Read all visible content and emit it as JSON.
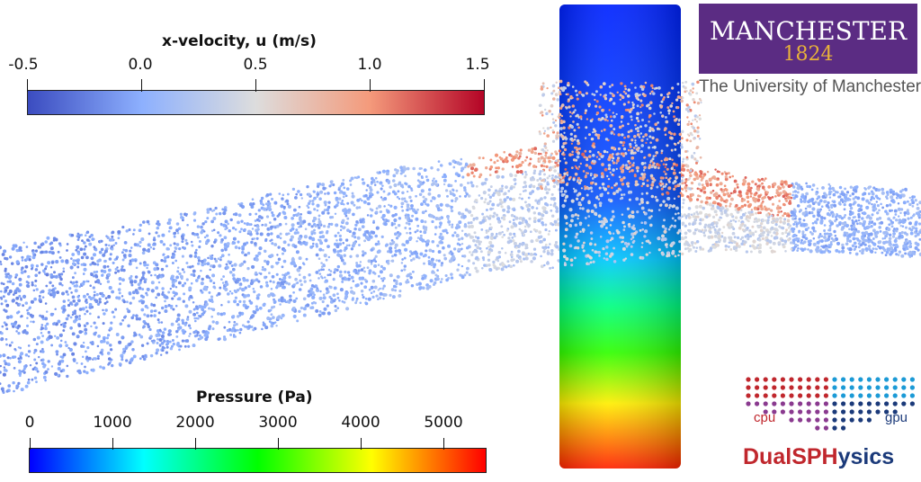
{
  "velocity_colorbar": {
    "title": "x-velocity, u (m/s)",
    "ticks": [
      "-0.5",
      "0.0",
      "0.5",
      "1.0",
      "1.5"
    ],
    "range": [
      -0.5,
      1.5
    ],
    "colors": [
      "#3b4cc0",
      "#8db0fe",
      "#dddddd",
      "#f49a7b",
      "#b40426"
    ]
  },
  "pressure_colorbar": {
    "title": "Pressure (Pa)",
    "ticks": [
      "0",
      "1000",
      "2000",
      "3000",
      "4000",
      "5000"
    ],
    "range": [
      0,
      5500
    ],
    "colors": [
      "#0000ff",
      "#00ffff",
      "#00ff00",
      "#ffff00",
      "#ff0000"
    ]
  },
  "logo_manchester": {
    "name": "MANCHESTER",
    "year": "1824",
    "subtitle": "The University of Manchester",
    "colors": {
      "background": "#5b2c83",
      "text": "#ffffff",
      "accent": "#e8b23a"
    }
  },
  "logo_dualsphysics": {
    "cpu": "cpu",
    "gpu": "gpu",
    "name_dual": "Dual",
    "name_sph": "SPH",
    "name_ysics": "ysics",
    "colors": {
      "red": "#c0272d",
      "blue": "#1b3a7a"
    }
  }
}
